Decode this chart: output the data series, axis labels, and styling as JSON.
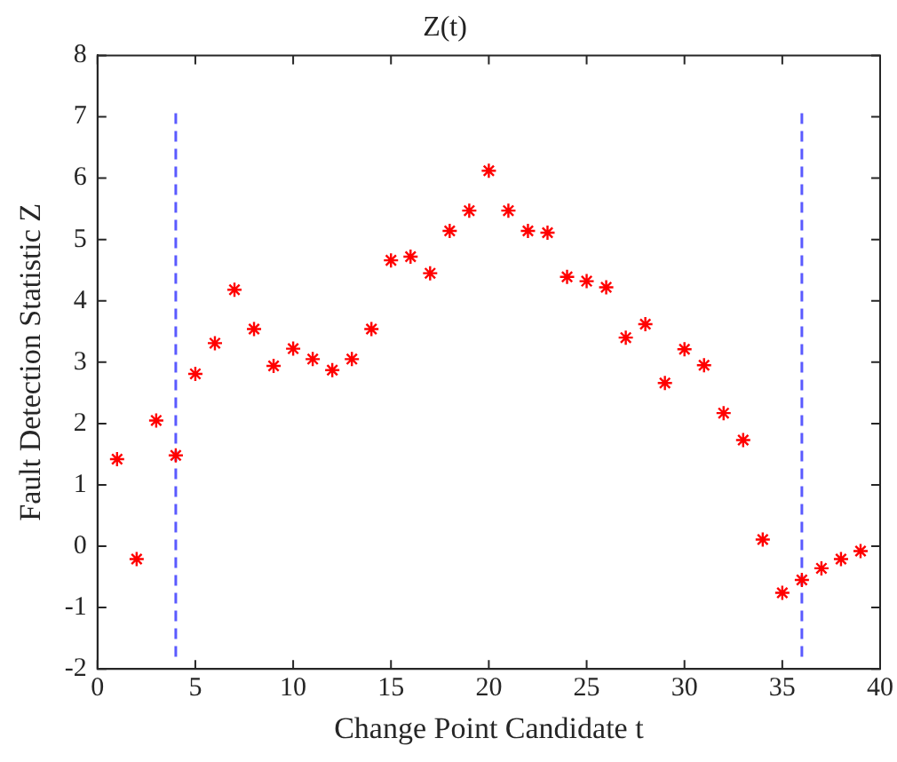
{
  "chart_data": {
    "type": "scatter",
    "title": "Z(t)",
    "xlabel": "Change Point Candidate t",
    "ylabel": "Fault Detection Statistic Z",
    "xlim": [
      0,
      40
    ],
    "xticks": [
      0,
      5,
      10,
      15,
      20,
      25,
      30,
      35,
      40
    ],
    "ylim": [
      -2,
      8
    ],
    "yticks": [
      -2,
      -1,
      0,
      1,
      2,
      3,
      4,
      5,
      6,
      7,
      8
    ],
    "grid": false,
    "legend": false,
    "series": [
      {
        "type": "scatter",
        "marker": "cross",
        "color": "#ff0000",
        "x": [
          1,
          2,
          3,
          4,
          5,
          6,
          7,
          8,
          9,
          10,
          11,
          12,
          13,
          14,
          15,
          16,
          17,
          18,
          19,
          20,
          21,
          22,
          23,
          24,
          25,
          26,
          27,
          28,
          29,
          30,
          31,
          32,
          33,
          34,
          35,
          36,
          37,
          38,
          39
        ],
        "values": [
          1.42,
          -0.21,
          2.05,
          1.48,
          2.81,
          3.31,
          4.18,
          3.54,
          2.94,
          3.22,
          3.05,
          2.87,
          3.05,
          3.54,
          4.66,
          4.72,
          4.45,
          5.14,
          5.47,
          6.12,
          5.47,
          5.14,
          5.11,
          4.39,
          4.32,
          4.22,
          3.4,
          3.62,
          2.66,
          3.21,
          2.95,
          2.17,
          1.73,
          0.11,
          -0.76,
          -0.55,
          -0.36,
          -0.21,
          -0.08
        ]
      },
      {
        "type": "line",
        "marker": "none",
        "line_style": "dashed",
        "color": "#5a5aff",
        "x": [
          4,
          4
        ],
        "values": [
          -1.8,
          7.1
        ]
      },
      {
        "type": "line",
        "marker": "none",
        "line_style": "dashed",
        "color": "#5a5aff",
        "x": [
          36,
          36
        ],
        "values": [
          -1.8,
          7.1
        ]
      }
    ]
  }
}
